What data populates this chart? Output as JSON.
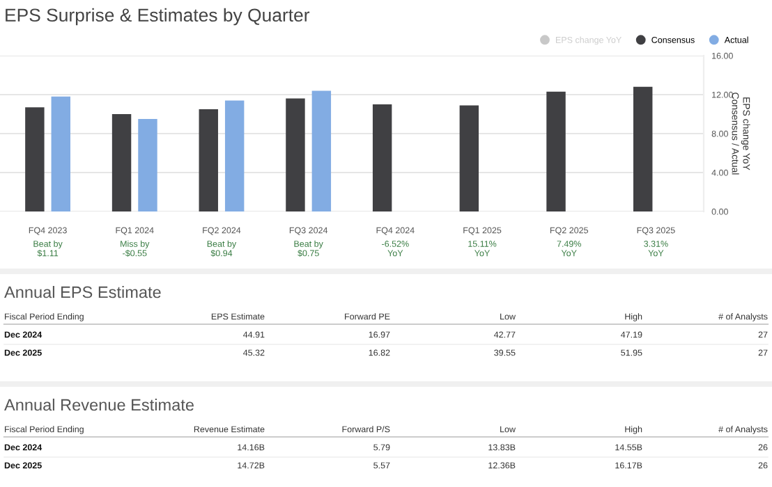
{
  "chart_data": [
    {
      "type": "bar",
      "title": "EPS Surprise & Estimates by Quarter",
      "ylabel": "Consensus / Actual",
      "y2label": "EPS change YoY",
      "categories": [
        "FQ4 2023",
        "FQ1 2024",
        "FQ2 2024",
        "FQ3 2024",
        "FQ4 2024",
        "FQ1 2025",
        "FQ2 2025",
        "FQ3 2025"
      ],
      "series": [
        {
          "name": "EPS change YoY",
          "color": "#c8c8c8",
          "axis": "y2",
          "values": [
            null,
            null,
            null,
            null,
            null,
            null,
            null,
            null
          ]
        },
        {
          "name": "Consensus",
          "color": "#404043",
          "values": [
            10.7,
            10.0,
            10.5,
            11.6,
            11.0,
            10.9,
            12.3,
            12.8
          ]
        },
        {
          "name": "Actual",
          "color": "#82ace3",
          "values": [
            11.8,
            9.5,
            11.4,
            12.4,
            null,
            null,
            null,
            null
          ]
        }
      ],
      "ylim": [
        0,
        16
      ],
      "yticks": [
        {
          "value": 0,
          "label": "0.00"
        },
        {
          "value": 4,
          "label": "4.00"
        },
        {
          "value": 8,
          "label": "8.00"
        },
        {
          "value": 12,
          "label": "12.00"
        },
        {
          "value": 16,
          "label": "16.00"
        }
      ],
      "grid": "y",
      "legend": "top right",
      "annotations": [
        "Beat by\n$1.11",
        "Miss by\n-$0.55",
        "Beat by\n$0.94",
        "Beat by\n$0.75",
        "-6.52%\nYoY",
        "15.11%\nYoY",
        "7.49%\nYoY",
        "3.31%\nYoY"
      ]
    },
    {
      "type": "other",
      "title": "Annual EPS Estimate",
      "categories": [
        "Fiscal Period Ending",
        "EPS Estimate",
        "Forward PE",
        "Low",
        "High",
        "# of Analysts"
      ],
      "y_categories": [
        "Dec 2024",
        "Dec 2025"
      ],
      "cell_labels": [
        [
          "44.91",
          "16.97",
          "42.77",
          "47.19",
          "27"
        ],
        [
          "45.32",
          "16.82",
          "39.55",
          "51.95",
          "27"
        ]
      ]
    },
    {
      "type": "other",
      "title": "Annual Revenue Estimate",
      "categories": [
        "Fiscal Period Ending",
        "Revenue Estimate",
        "Forward P/S",
        "Low",
        "High",
        "# of Analysts"
      ],
      "y_categories": [
        "Dec 2024",
        "Dec 2025"
      ],
      "cell_labels": [
        [
          "14.16B",
          "5.79",
          "13.83B",
          "14.55B",
          "26"
        ],
        [
          "14.72B",
          "5.57",
          "12.36B",
          "16.17B",
          "26"
        ]
      ]
    }
  ]
}
